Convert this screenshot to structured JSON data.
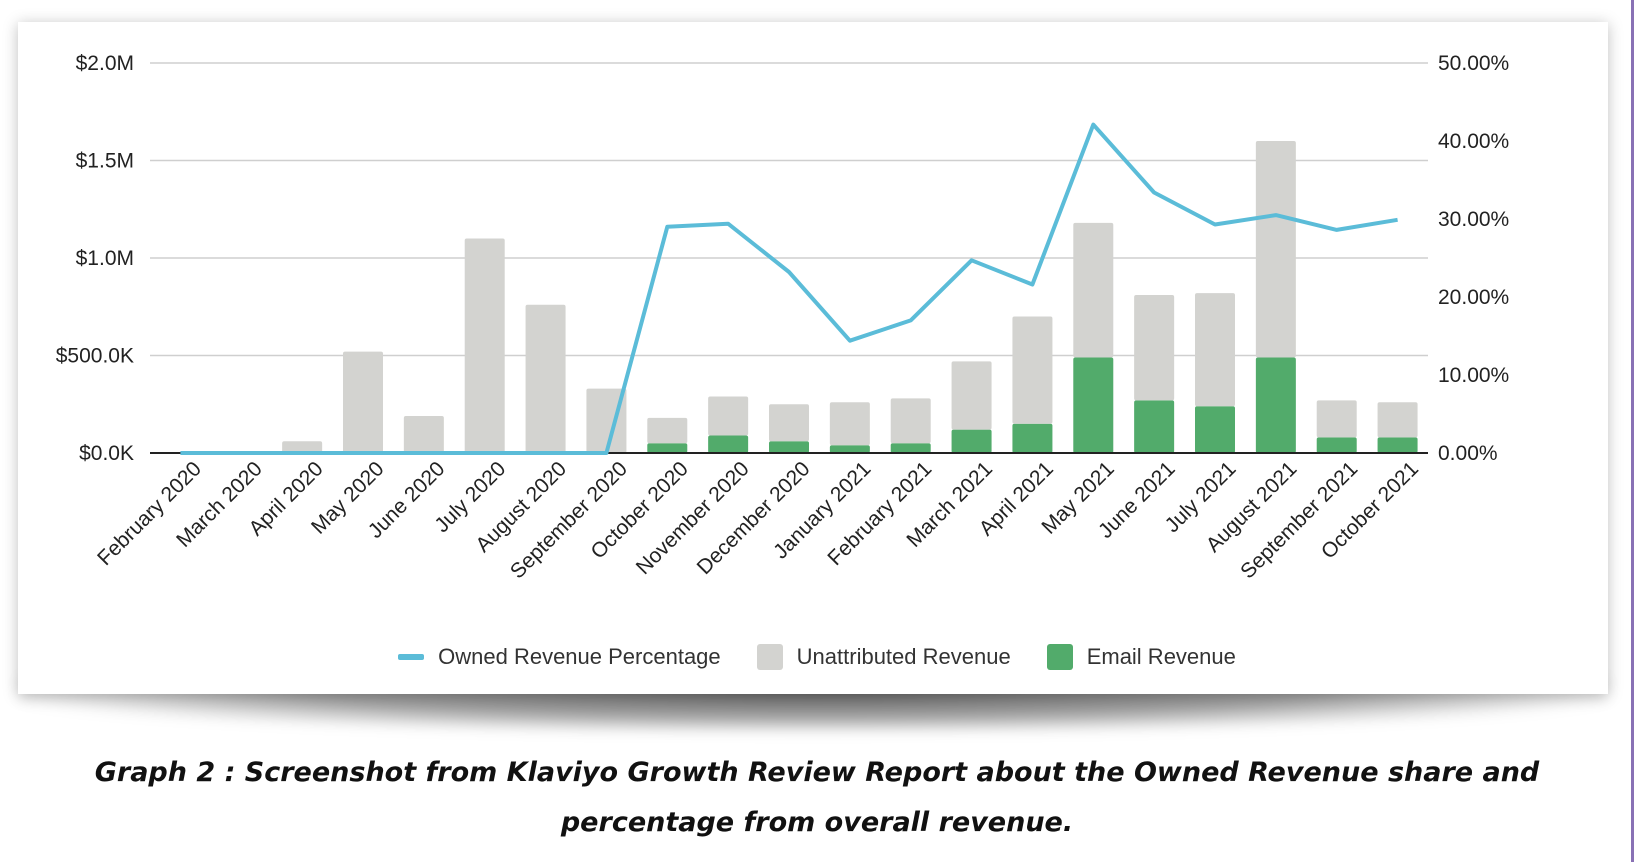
{
  "chart_data": {
    "type": "bar",
    "stacked": true,
    "categories": [
      "February 2020",
      "March 2020",
      "April 2020",
      "May 2020",
      "June 2020",
      "July 2020",
      "August 2020",
      "September 2020",
      "October 2020",
      "November 2020",
      "December 2020",
      "January 2021",
      "February 2021",
      "March 2021",
      "April 2021",
      "May 2021",
      "June 2021",
      "July 2021",
      "August 2021",
      "September 2021",
      "October 2021"
    ],
    "left_axis": {
      "ticks": [
        "$0.0K",
        "$500.0K",
        "$1.0M",
        "$1.5M",
        "$2.0M"
      ],
      "ylim": [
        0,
        2000000
      ]
    },
    "right_axis": {
      "ticks": [
        "0.00%",
        "10.00%",
        "20.00%",
        "30.00%",
        "40.00%",
        "50.00%"
      ],
      "ylim": [
        0,
        50
      ]
    },
    "series": [
      {
        "name": "Email Revenue",
        "kind": "bar",
        "axis": "left",
        "color": "#52ab6b",
        "values": [
          0,
          0,
          0,
          0,
          0,
          0,
          0,
          0,
          50000,
          90000,
          60000,
          40000,
          50000,
          120000,
          150000,
          490000,
          270000,
          240000,
          490000,
          80000,
          80000
        ]
      },
      {
        "name": "Unattributed Revenue",
        "kind": "bar",
        "axis": "left",
        "color": "#d3d3d0",
        "values": [
          0,
          0,
          60000,
          520000,
          190000,
          1100000,
          760000,
          330000,
          130000,
          200000,
          190000,
          220000,
          230000,
          350000,
          550000,
          690000,
          540000,
          580000,
          1110000,
          190000,
          180000
        ]
      },
      {
        "name": "Owned Revenue Percentage",
        "kind": "line",
        "axis": "right",
        "color": "#5bbcd8",
        "values": [
          0,
          0,
          0,
          0,
          0,
          0,
          0,
          0,
          29.0,
          29.4,
          23.2,
          14.4,
          17.0,
          24.7,
          21.6,
          42.1,
          33.4,
          29.3,
          30.5,
          28.6,
          29.9
        ]
      }
    ],
    "legend": {
      "position": "bottom",
      "order": [
        "Owned Revenue Percentage",
        "Unattributed Revenue",
        "Email Revenue"
      ]
    },
    "grid": true
  },
  "caption": {
    "line1": "Graph 2 : Screenshot from Klaviyo Growth Review Report about the Owned Revenue share and",
    "line2": "percentage from overall revenue."
  }
}
